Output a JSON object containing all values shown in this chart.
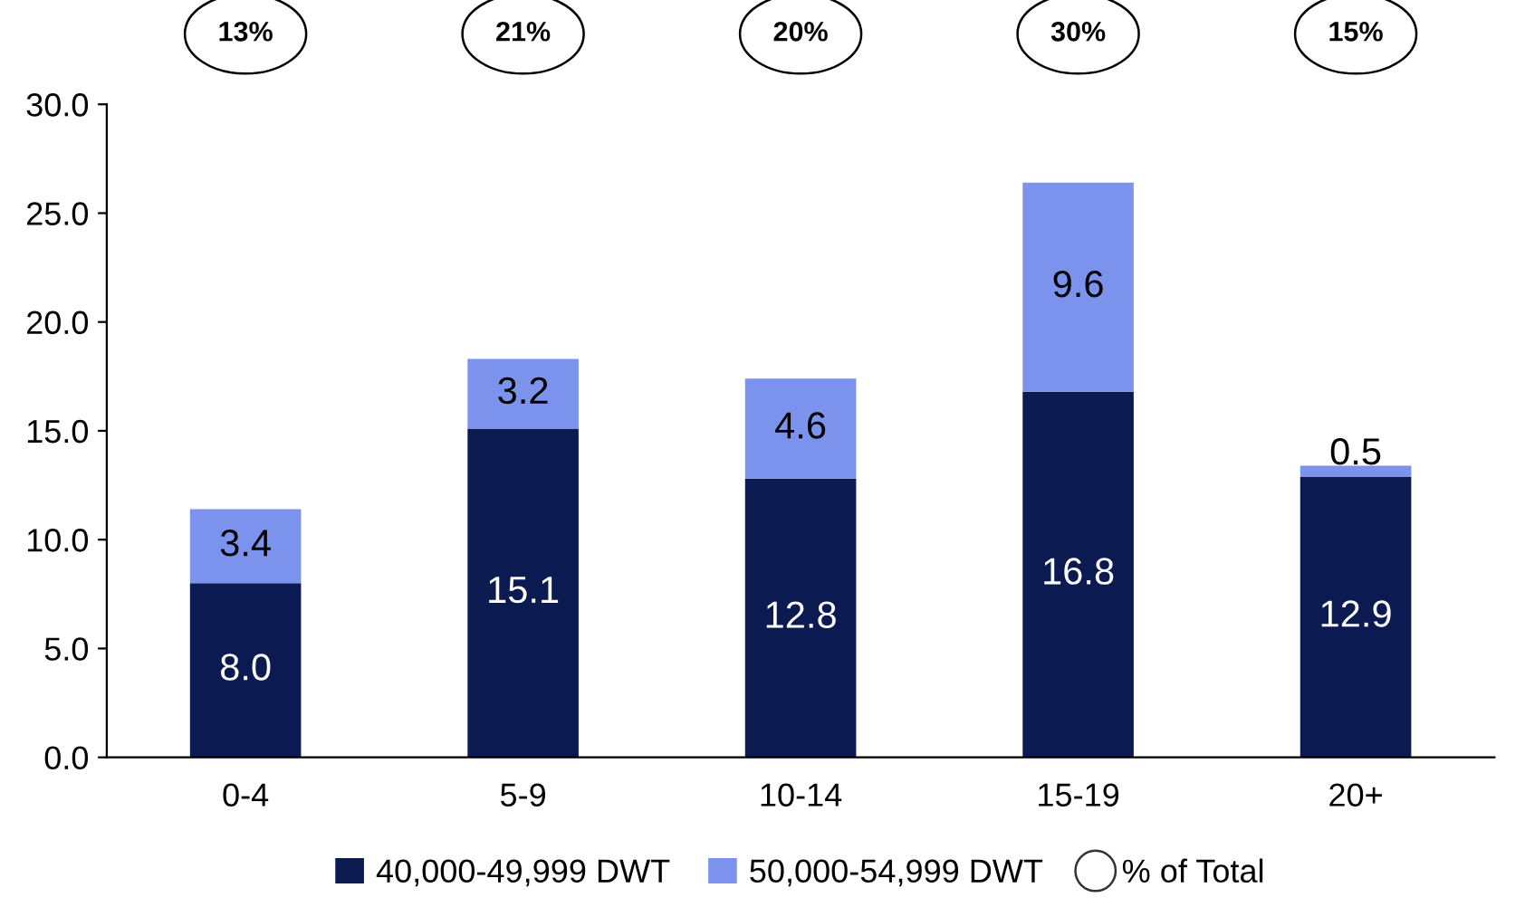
{
  "chart_data": {
    "type": "bar",
    "stacked": true,
    "categories": [
      "0-4",
      "5-9",
      "10-14",
      "15-19",
      "20+"
    ],
    "series": [
      {
        "name": "40,000-49,999 DWT",
        "color": "#0c1a52",
        "values": [
          8.0,
          15.1,
          12.8,
          16.8,
          12.9
        ],
        "value_labels": [
          "8.0",
          "15.1",
          "12.8",
          "16.8",
          "12.9"
        ]
      },
      {
        "name": "50,000-54,999 DWT",
        "color": "#7b93ec",
        "values": [
          3.4,
          3.2,
          4.6,
          9.6,
          0.5
        ],
        "value_labels": [
          "3.4",
          "3.2",
          "4.6",
          "9.6",
          "0.5"
        ]
      }
    ],
    "ylim": [
      0,
      30
    ],
    "yticks": [
      {
        "value": 0,
        "label": "0.0"
      },
      {
        "value": 5,
        "label": "5.0"
      },
      {
        "value": 10,
        "label": "10.0"
      },
      {
        "value": 15,
        "label": "15.0"
      },
      {
        "value": 20,
        "label": "20.0"
      },
      {
        "value": 25,
        "label": "25.0"
      },
      {
        "value": 30,
        "label": "30.0"
      }
    ],
    "legend": "bottom",
    "annotations": [
      "13%",
      "21%",
      "20%",
      "30%",
      "15%",
      "% of Total"
    ]
  }
}
